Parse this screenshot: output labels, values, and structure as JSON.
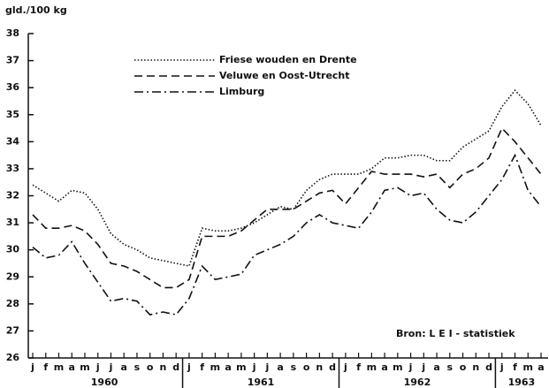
{
  "chart_data": {
    "type": "line",
    "y_label": "gld./100 kg",
    "source": "Bron: L E I - statistiek",
    "categories": [
      "j",
      "f",
      "m",
      "a",
      "m",
      "j",
      "j",
      "a",
      "s",
      "o",
      "n",
      "d",
      "j",
      "f",
      "m",
      "a",
      "m",
      "j",
      "j",
      "a",
      "s",
      "o",
      "n",
      "d",
      "j",
      "f",
      "m",
      "a",
      "m",
      "j",
      "j",
      "a",
      "s",
      "o",
      "n",
      "d",
      "j",
      "f",
      "m",
      "a"
    ],
    "x_groups": [
      {
        "label": "1960",
        "start": 0,
        "end": 11
      },
      {
        "label": "1961",
        "start": 12,
        "end": 23
      },
      {
        "label": "1962",
        "start": 24,
        "end": 35
      },
      {
        "label": "1963",
        "start": 36,
        "end": 39
      }
    ],
    "ylim": [
      26,
      38
    ],
    "yticks": [
      26,
      27,
      28,
      29,
      30,
      31,
      32,
      33,
      34,
      35,
      36,
      37,
      38
    ],
    "series": [
      {
        "name": "Friese wouden en Drente",
        "color": "#111",
        "dash": "1.5,2.2",
        "values": [
          32.4,
          32.1,
          31.8,
          32.2,
          32.1,
          31.5,
          30.6,
          30.2,
          30.0,
          29.7,
          29.6,
          29.5,
          29.4,
          30.8,
          30.7,
          30.7,
          30.8,
          31.0,
          31.3,
          31.6,
          31.5,
          32.2,
          32.6,
          32.8,
          32.8,
          32.8,
          33.0,
          33.4,
          33.4,
          33.5,
          33.5,
          33.3,
          33.3,
          33.8,
          34.1,
          34.4,
          35.3,
          35.9,
          35.4,
          34.6
        ]
      },
      {
        "name": "Veluwe en Oost-Utrecht",
        "color": "#111",
        "dash": "9,5",
        "values": [
          31.3,
          30.8,
          30.8,
          30.9,
          30.7,
          30.2,
          29.5,
          29.4,
          29.2,
          28.9,
          28.6,
          28.6,
          28.9,
          30.5,
          30.5,
          30.5,
          30.7,
          31.1,
          31.5,
          31.5,
          31.5,
          31.8,
          32.1,
          32.2,
          31.7,
          32.3,
          32.9,
          32.8,
          32.8,
          32.8,
          32.7,
          32.8,
          32.3,
          32.8,
          33.0,
          33.4,
          34.5,
          34.0,
          33.4,
          32.8
        ]
      },
      {
        "name": "Limburg",
        "color": "#111",
        "dash": "10,4,2,4",
        "values": [
          30.1,
          29.7,
          29.8,
          30.3,
          29.5,
          28.8,
          28.1,
          28.2,
          28.1,
          27.6,
          27.7,
          27.6,
          28.2,
          29.4,
          28.9,
          29.0,
          29.1,
          29.8,
          30.0,
          30.2,
          30.5,
          31.0,
          31.3,
          31.0,
          30.9,
          30.8,
          31.4,
          32.2,
          32.3,
          32.0,
          32.1,
          31.5,
          31.1,
          31.0,
          31.4,
          32.0,
          32.6,
          33.5,
          32.2,
          31.6
        ]
      }
    ]
  }
}
